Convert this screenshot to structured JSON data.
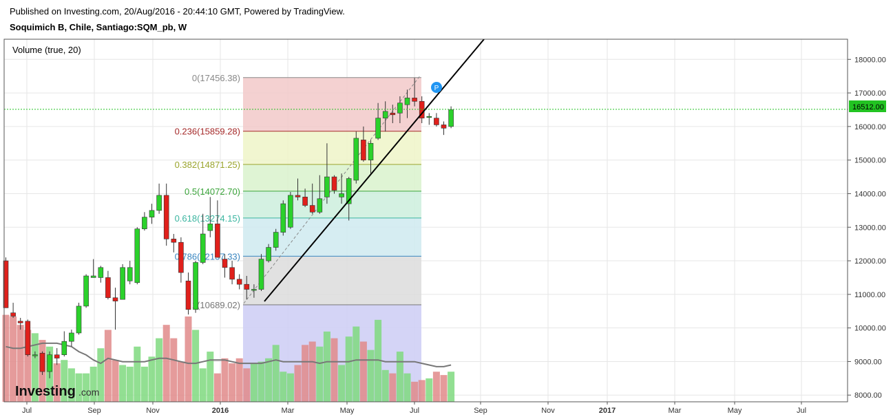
{
  "header": {
    "published": "Published on Investing.com, 20/Aug/2016 - 20:44:10 GMT, Powered by TradingView.",
    "symbol": "Soquimich B, Chile, Santiago:SQM_pb, W"
  },
  "indicator_label": "Volume (true, 20)",
  "logo": {
    "brand": "Investing",
    "suffix": ".com"
  },
  "colors": {
    "up": "#2bd12b",
    "down": "#e0201b",
    "vol_up": "#7fd97f",
    "vol_down": "#e08a8a",
    "trend": "#000000",
    "last_price": "#22c322",
    "marker": "#2196f3"
  },
  "marker_label": "P",
  "chart_data": {
    "type": "candlestick",
    "y_axis": {
      "min": 7800,
      "max": 18600,
      "ticks": [
        "18000.00",
        "17000.00",
        "16000.00",
        "15000.00",
        "14000.00",
        "13000.00",
        "12000.00",
        "11000.00",
        "10000.00",
        "9000.00",
        "8000.00"
      ]
    },
    "x_axis": {
      "labels": [
        "Jul",
        "Sep",
        "Nov",
        "2016",
        "Mar",
        "May",
        "Jul",
        "Sep",
        "Nov",
        "2017",
        "Mar",
        "May",
        "Jul"
      ]
    },
    "last_price": "16512.00",
    "fibonacci": [
      {
        "label": "0(17456.38)",
        "value": 17456.38,
        "color": "#888888"
      },
      {
        "label": "0.236(15859.28)",
        "value": 15859.28,
        "color": "#a52a2a"
      },
      {
        "label": "0.382(14871.25)",
        "value": 14871.25,
        "color": "#9aa42c"
      },
      {
        "label": "0.5(14072.70)",
        "value": 14072.7,
        "color": "#3aa43a"
      },
      {
        "label": "0.618(13274.15)",
        "value": 13274.15,
        "color": "#3bb5a0"
      },
      {
        "label": "0.786(12137.33)",
        "value": 12137.33,
        "color": "#3a86c0"
      },
      {
        "label": "1(10689.02)",
        "value": 10689.02,
        "color": "#777777"
      }
    ],
    "candles": [
      {
        "o": 12000,
        "h": 12100,
        "l": 10600,
        "c": 10600
      },
      {
        "o": 10450,
        "h": 10750,
        "l": 10300,
        "c": 10350
      },
      {
        "o": 10200,
        "h": 10300,
        "l": 9950,
        "c": 10150
      },
      {
        "o": 10200,
        "h": 10250,
        "l": 9150,
        "c": 9200
      },
      {
        "o": 9200,
        "h": 9300,
        "l": 9100,
        "c": 9200
      },
      {
        "o": 9250,
        "h": 9300,
        "l": 8600,
        "c": 8700
      },
      {
        "o": 8700,
        "h": 9300,
        "l": 8500,
        "c": 9200
      },
      {
        "o": 9200,
        "h": 9400,
        "l": 8900,
        "c": 9100
      },
      {
        "o": 9200,
        "h": 9900,
        "l": 9150,
        "c": 9600
      },
      {
        "o": 9600,
        "h": 9950,
        "l": 9450,
        "c": 9850
      },
      {
        "o": 9850,
        "h": 10750,
        "l": 9800,
        "c": 10650
      },
      {
        "o": 10650,
        "h": 11600,
        "l": 10600,
        "c": 11550
      },
      {
        "o": 11500,
        "h": 12050,
        "l": 11500,
        "c": 11550
      },
      {
        "o": 11500,
        "h": 11850,
        "l": 11350,
        "c": 11800
      },
      {
        "o": 11500,
        "h": 11700,
        "l": 10850,
        "c": 10900
      },
      {
        "o": 10900,
        "h": 11200,
        "l": 9950,
        "c": 10800
      },
      {
        "o": 10850,
        "h": 11900,
        "l": 10850,
        "c": 11800
      },
      {
        "o": 11400,
        "h": 12000,
        "l": 11300,
        "c": 11800
      },
      {
        "o": 11350,
        "h": 13000,
        "l": 11300,
        "c": 12950
      },
      {
        "o": 12950,
        "h": 13450,
        "l": 12900,
        "c": 13300
      },
      {
        "o": 13300,
        "h": 13700,
        "l": 13100,
        "c": 13500
      },
      {
        "o": 13500,
        "h": 14300,
        "l": 13400,
        "c": 13950
      },
      {
        "o": 13950,
        "h": 14300,
        "l": 12450,
        "c": 12650
      },
      {
        "o": 12650,
        "h": 12800,
        "l": 12250,
        "c": 12550
      },
      {
        "o": 12550,
        "h": 12700,
        "l": 11350,
        "c": 11650
      },
      {
        "o": 11400,
        "h": 11650,
        "l": 10400,
        "c": 10550
      },
      {
        "o": 10550,
        "h": 12000,
        "l": 10450,
        "c": 11950
      },
      {
        "o": 11950,
        "h": 13400,
        "l": 11900,
        "c": 12800
      },
      {
        "o": 12900,
        "h": 13900,
        "l": 12700,
        "c": 13100
      },
      {
        "o": 13100,
        "h": 13800,
        "l": 12100,
        "c": 12100
      },
      {
        "o": 12050,
        "h": 12200,
        "l": 11500,
        "c": 11800
      },
      {
        "o": 11800,
        "h": 12000,
        "l": 11300,
        "c": 11450
      },
      {
        "o": 11450,
        "h": 11600,
        "l": 11150,
        "c": 11300
      },
      {
        "o": 11300,
        "h": 11550,
        "l": 10850,
        "c": 11150
      },
      {
        "o": 11150,
        "h": 11300,
        "l": 10900,
        "c": 11150
      },
      {
        "o": 11150,
        "h": 12200,
        "l": 11100,
        "c": 12050
      },
      {
        "o": 12000,
        "h": 12500,
        "l": 11950,
        "c": 12400
      },
      {
        "o": 12400,
        "h": 12950,
        "l": 12300,
        "c": 12850
      },
      {
        "o": 12850,
        "h": 13800,
        "l": 12750,
        "c": 13700
      },
      {
        "o": 13000,
        "h": 14050,
        "l": 12950,
        "c": 13950
      },
      {
        "o": 13950,
        "h": 14450,
        "l": 13800,
        "c": 13900
      },
      {
        "o": 13900,
        "h": 14150,
        "l": 13600,
        "c": 13650
      },
      {
        "o": 13650,
        "h": 14300,
        "l": 13400,
        "c": 13450
      },
      {
        "o": 13450,
        "h": 14550,
        "l": 13400,
        "c": 13850
      },
      {
        "o": 13900,
        "h": 15500,
        "l": 13700,
        "c": 14500
      },
      {
        "o": 14500,
        "h": 14550,
        "l": 14000,
        "c": 14100
      },
      {
        "o": 13900,
        "h": 14600,
        "l": 13700,
        "c": 14000
      },
      {
        "o": 13700,
        "h": 14500,
        "l": 13200,
        "c": 14450
      },
      {
        "o": 14400,
        "h": 15850,
        "l": 14300,
        "c": 15650
      },
      {
        "o": 15600,
        "h": 16000,
        "l": 14950,
        "c": 15000
      },
      {
        "o": 15000,
        "h": 15600,
        "l": 14600,
        "c": 15500
      },
      {
        "o": 15650,
        "h": 16700,
        "l": 15600,
        "c": 16250
      },
      {
        "o": 16250,
        "h": 16750,
        "l": 15850,
        "c": 16450
      },
      {
        "o": 16400,
        "h": 16650,
        "l": 16100,
        "c": 16350
      },
      {
        "o": 16400,
        "h": 16900,
        "l": 16100,
        "c": 16700
      },
      {
        "o": 16650,
        "h": 17100,
        "l": 16250,
        "c": 16850
      },
      {
        "o": 16850,
        "h": 17450,
        "l": 16600,
        "c": 16750
      },
      {
        "o": 16750,
        "h": 16900,
        "l": 16100,
        "c": 16250
      },
      {
        "o": 16300,
        "h": 16400,
        "l": 16050,
        "c": 16300
      },
      {
        "o": 16250,
        "h": 16400,
        "l": 16000,
        "c": 16050
      },
      {
        "o": 16050,
        "h": 16150,
        "l": 15750,
        "c": 15950
      },
      {
        "o": 16000,
        "h": 16600,
        "l": 15950,
        "c": 16500
      }
    ],
    "volume": [
      0.52,
      0.51,
      0.46,
      0.43,
      0.41,
      0.37,
      0.33,
      0.23,
      0.25,
      0.2,
      0.17,
      0.17,
      0.21,
      0.32,
      0.43,
      0.25,
      0.22,
      0.21,
      0.33,
      0.21,
      0.27,
      0.38,
      0.46,
      0.38,
      0.24,
      0.51,
      0.43,
      0.2,
      0.3,
      0.17,
      0.26,
      0.23,
      0.26,
      0.2,
      0.23,
      0.24,
      0.26,
      0.34,
      0.18,
      0.17,
      0.22,
      0.34,
      0.36,
      0.33,
      0.42,
      0.38,
      0.22,
      0.39,
      0.45,
      0.36,
      0.31,
      0.49,
      0.19,
      0.17,
      0.3,
      0.17,
      0.12,
      0.13,
      0.14,
      0.18,
      0.16,
      0.18
    ],
    "volume_ma": [
      0.33,
      0.32,
      0.32,
      0.33,
      0.34,
      0.35,
      0.35,
      0.35,
      0.34,
      0.33,
      0.3,
      0.28,
      0.25,
      0.23,
      0.26,
      0.25,
      0.24,
      0.24,
      0.24,
      0.24,
      0.25,
      0.26,
      0.26,
      0.25,
      0.24,
      0.23,
      0.23,
      0.24,
      0.25,
      0.25,
      0.25,
      0.24,
      0.23,
      0.23,
      0.23,
      0.23,
      0.24,
      0.25,
      0.24,
      0.24,
      0.24,
      0.24,
      0.24,
      0.23,
      0.24,
      0.24,
      0.24,
      0.24,
      0.25,
      0.25,
      0.25,
      0.25,
      0.24,
      0.24,
      0.24,
      0.24,
      0.24,
      0.23,
      0.22,
      0.21,
      0.21,
      0.22
    ]
  }
}
